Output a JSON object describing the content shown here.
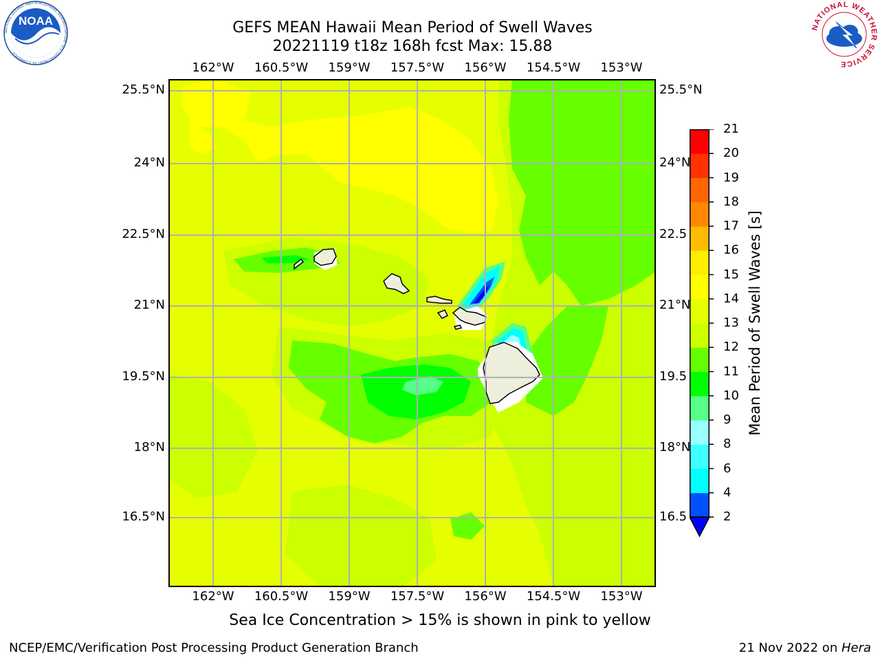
{
  "header": {
    "title_line1": "GEFS MEAN Hawaii Mean Period of Swell Waves",
    "title_line2": "20221119 t18z 168h fcst   Max: 15.88",
    "logo_left_text": "NOAA",
    "logo_left_ring": "NATIONAL OCEANIC AND ATMOSPHERIC ADMINISTRATION · U.S. DEPARTMENT OF COMMERCE",
    "logo_right_ring": "NATIONAL WEATHER SERVICE"
  },
  "map": {
    "x_ticks": [
      "162°W",
      "160.5°W",
      "159°W",
      "157.5°W",
      "156°W",
      "154.5°W",
      "153°W"
    ],
    "y_ticks": [
      "25.5°N",
      "24°N",
      "22.5°N",
      "21°N",
      "19.5°N",
      "18°N",
      "16.5°N"
    ],
    "y_ticks_right": [
      "25.5°N",
      "24°N",
      "22.5",
      "21°N",
      "19.5",
      "18°N",
      "16.5"
    ],
    "field_colors": {
      "yellow": "#ffff00",
      "yellow_green": "#e6ff00",
      "lime": "#ccff00",
      "green": "#66ff00",
      "bright_green": "#00ff00",
      "land": "#eeeedd"
    }
  },
  "colorbar": {
    "label": "Mean Period of Swell Waves [s]",
    "levels": [
      2,
      4,
      6,
      8,
      9,
      10,
      11,
      12,
      13,
      14,
      15,
      16,
      17,
      18,
      19,
      20,
      21
    ],
    "colors": [
      "#0050ff",
      "#00ffff",
      "#40ffff",
      "#99ffff",
      "#55ff88",
      "#00ff00",
      "#66ff00",
      "#ccff00",
      "#e6ff00",
      "#ffff00",
      "#ffee00",
      "#ffbb00",
      "#ff8800",
      "#ff6600",
      "#ff3300",
      "#ff0000"
    ],
    "under_color": "#0000ff"
  },
  "caption": "Sea Ice Concentration > 15% is shown in pink to yellow",
  "footer": {
    "left": "NCEP/EMC/Verification Post Processing Product Generation Branch",
    "right_prefix": "21 Nov 2022 on ",
    "right_emph": "Hera"
  }
}
